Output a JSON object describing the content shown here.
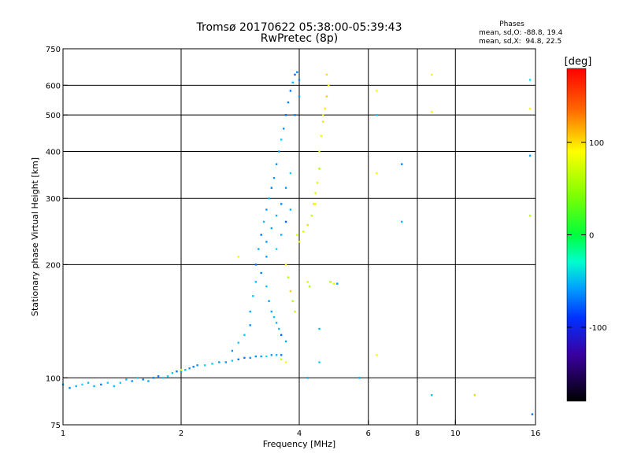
{
  "chart_data": {
    "type": "scatter",
    "title": "Tromsø 20170622 05:38:00-05:39:43",
    "subtitle": "RwPretec (8p)",
    "phases": {
      "heading": "Phases",
      "line_o": "mean, sd,O: -88.8, 19.4",
      "line_x": "mean, sd,X:  94.8, 22.5"
    },
    "xlabel": "Frequency [MHz]",
    "ylabel": "Stationary phase Virtual Height [km]",
    "x_scale": "log",
    "y_scale": "log",
    "xlim": [
      1,
      16
    ],
    "ylim": [
      75,
      750
    ],
    "x_ticks": [
      1,
      2,
      4,
      6,
      8,
      10,
      16
    ],
    "x_tick_labels": [
      "1",
      "2",
      "4",
      "6",
      "8",
      "10",
      "16"
    ],
    "y_ticks": [
      75,
      100,
      200,
      300,
      400,
      500,
      600,
      750
    ],
    "y_tick_labels": [
      "75",
      "100",
      "200",
      "300",
      "400",
      "500",
      "600",
      "750"
    ],
    "grid": true,
    "colorbar": {
      "label": "[deg]",
      "range": [
        -180,
        180
      ],
      "ticks": [
        100,
        0,
        -100
      ],
      "tick_labels": [
        "100",
        "0",
        "-100"
      ]
    },
    "series": [
      {
        "name": "O-mode",
        "phase_mean": -88.8,
        "phase_sd": 19.4,
        "points": [
          [
            1.0,
            96
          ],
          [
            1.04,
            94
          ],
          [
            1.08,
            95
          ],
          [
            1.12,
            96
          ],
          [
            1.16,
            97
          ],
          [
            1.2,
            95
          ],
          [
            1.25,
            96
          ],
          [
            1.3,
            97
          ],
          [
            1.35,
            95
          ],
          [
            1.4,
            97
          ],
          [
            1.45,
            99
          ],
          [
            1.5,
            98
          ],
          [
            1.55,
            100
          ],
          [
            1.6,
            99
          ],
          [
            1.65,
            98
          ],
          [
            1.7,
            100
          ],
          [
            1.75,
            101
          ],
          [
            1.8,
            100
          ],
          [
            1.85,
            101
          ],
          [
            1.9,
            103
          ],
          [
            1.95,
            104
          ],
          [
            2.0,
            104
          ],
          [
            2.05,
            105
          ],
          [
            2.1,
            106
          ],
          [
            2.15,
            107
          ],
          [
            2.2,
            108
          ],
          [
            2.3,
            108
          ],
          [
            2.4,
            109
          ],
          [
            2.5,
            110
          ],
          [
            2.6,
            110
          ],
          [
            2.7,
            111
          ],
          [
            2.8,
            112
          ],
          [
            2.9,
            113
          ],
          [
            3.0,
            113
          ],
          [
            3.1,
            114
          ],
          [
            3.2,
            114
          ],
          [
            3.3,
            114
          ],
          [
            3.4,
            115
          ],
          [
            3.5,
            115
          ],
          [
            3.6,
            115
          ],
          [
            2.7,
            118
          ],
          [
            2.8,
            124
          ],
          [
            2.9,
            130
          ],
          [
            3.0,
            138
          ],
          [
            3.0,
            150
          ],
          [
            3.05,
            165
          ],
          [
            3.1,
            180
          ],
          [
            3.1,
            200
          ],
          [
            3.15,
            220
          ],
          [
            3.2,
            240
          ],
          [
            3.25,
            260
          ],
          [
            3.3,
            280
          ],
          [
            3.35,
            300
          ],
          [
            3.4,
            320
          ],
          [
            3.45,
            340
          ],
          [
            3.5,
            370
          ],
          [
            3.55,
            400
          ],
          [
            3.6,
            430
          ],
          [
            3.65,
            460
          ],
          [
            3.7,
            500
          ],
          [
            3.75,
            540
          ],
          [
            3.8,
            580
          ],
          [
            3.85,
            610
          ],
          [
            3.9,
            640
          ],
          [
            3.95,
            650
          ],
          [
            4.0,
            620
          ],
          [
            4.0,
            560
          ],
          [
            3.9,
            500
          ],
          [
            3.3,
            175
          ],
          [
            3.35,
            160
          ],
          [
            3.4,
            150
          ],
          [
            3.45,
            145
          ],
          [
            3.5,
            140
          ],
          [
            3.55,
            135
          ],
          [
            3.6,
            130
          ],
          [
            3.7,
            125
          ],
          [
            3.3,
            230
          ],
          [
            3.4,
            250
          ],
          [
            3.5,
            270
          ],
          [
            3.6,
            290
          ],
          [
            3.7,
            320
          ],
          [
            3.8,
            350
          ],
          [
            3.2,
            190
          ],
          [
            3.3,
            210
          ],
          [
            3.5,
            220
          ],
          [
            3.6,
            240
          ],
          [
            3.7,
            260
          ],
          [
            3.8,
            280
          ],
          [
            4.8,
            180
          ],
          [
            5.0,
            178
          ],
          [
            6.3,
            500
          ],
          [
            7.3,
            260
          ],
          [
            7.3,
            370
          ],
          [
            8.7,
            90
          ],
          [
            15.5,
            620
          ],
          [
            15.5,
            390
          ],
          [
            15.7,
            80
          ],
          [
            4.2,
            100
          ],
          [
            4.5,
            135
          ],
          [
            4.5,
            110
          ],
          [
            5.7,
            100
          ]
        ]
      },
      {
        "name": "X-mode",
        "phase_mean": 94.8,
        "phase_sd": 22.5,
        "points": [
          [
            3.7,
            200
          ],
          [
            3.75,
            185
          ],
          [
            3.8,
            170
          ],
          [
            3.85,
            160
          ],
          [
            3.9,
            150
          ],
          [
            3.95,
            240
          ],
          [
            4.0,
            230
          ],
          [
            4.1,
            245
          ],
          [
            4.2,
            255
          ],
          [
            4.3,
            270
          ],
          [
            4.35,
            290
          ],
          [
            4.4,
            310
          ],
          [
            4.45,
            330
          ],
          [
            4.5,
            360
          ],
          [
            4.5,
            400
          ],
          [
            4.55,
            440
          ],
          [
            4.6,
            480
          ],
          [
            4.65,
            520
          ],
          [
            4.7,
            560
          ],
          [
            4.75,
            600
          ],
          [
            4.7,
            640
          ],
          [
            4.2,
            180
          ],
          [
            4.25,
            175
          ],
          [
            4.8,
            180
          ],
          [
            4.9,
            178
          ],
          [
            6.3,
            580
          ],
          [
            6.3,
            350
          ],
          [
            6.3,
            115
          ],
          [
            8.7,
            640
          ],
          [
            8.7,
            510
          ],
          [
            11.2,
            90
          ],
          [
            15.5,
            520
          ],
          [
            15.5,
            270
          ],
          [
            3.7,
            110
          ],
          [
            3.6,
            112
          ],
          [
            2.8,
            210
          ],
          [
            2.0,
            105
          ],
          [
            4.6,
            500
          ],
          [
            4.4,
            290
          ]
        ]
      }
    ]
  }
}
